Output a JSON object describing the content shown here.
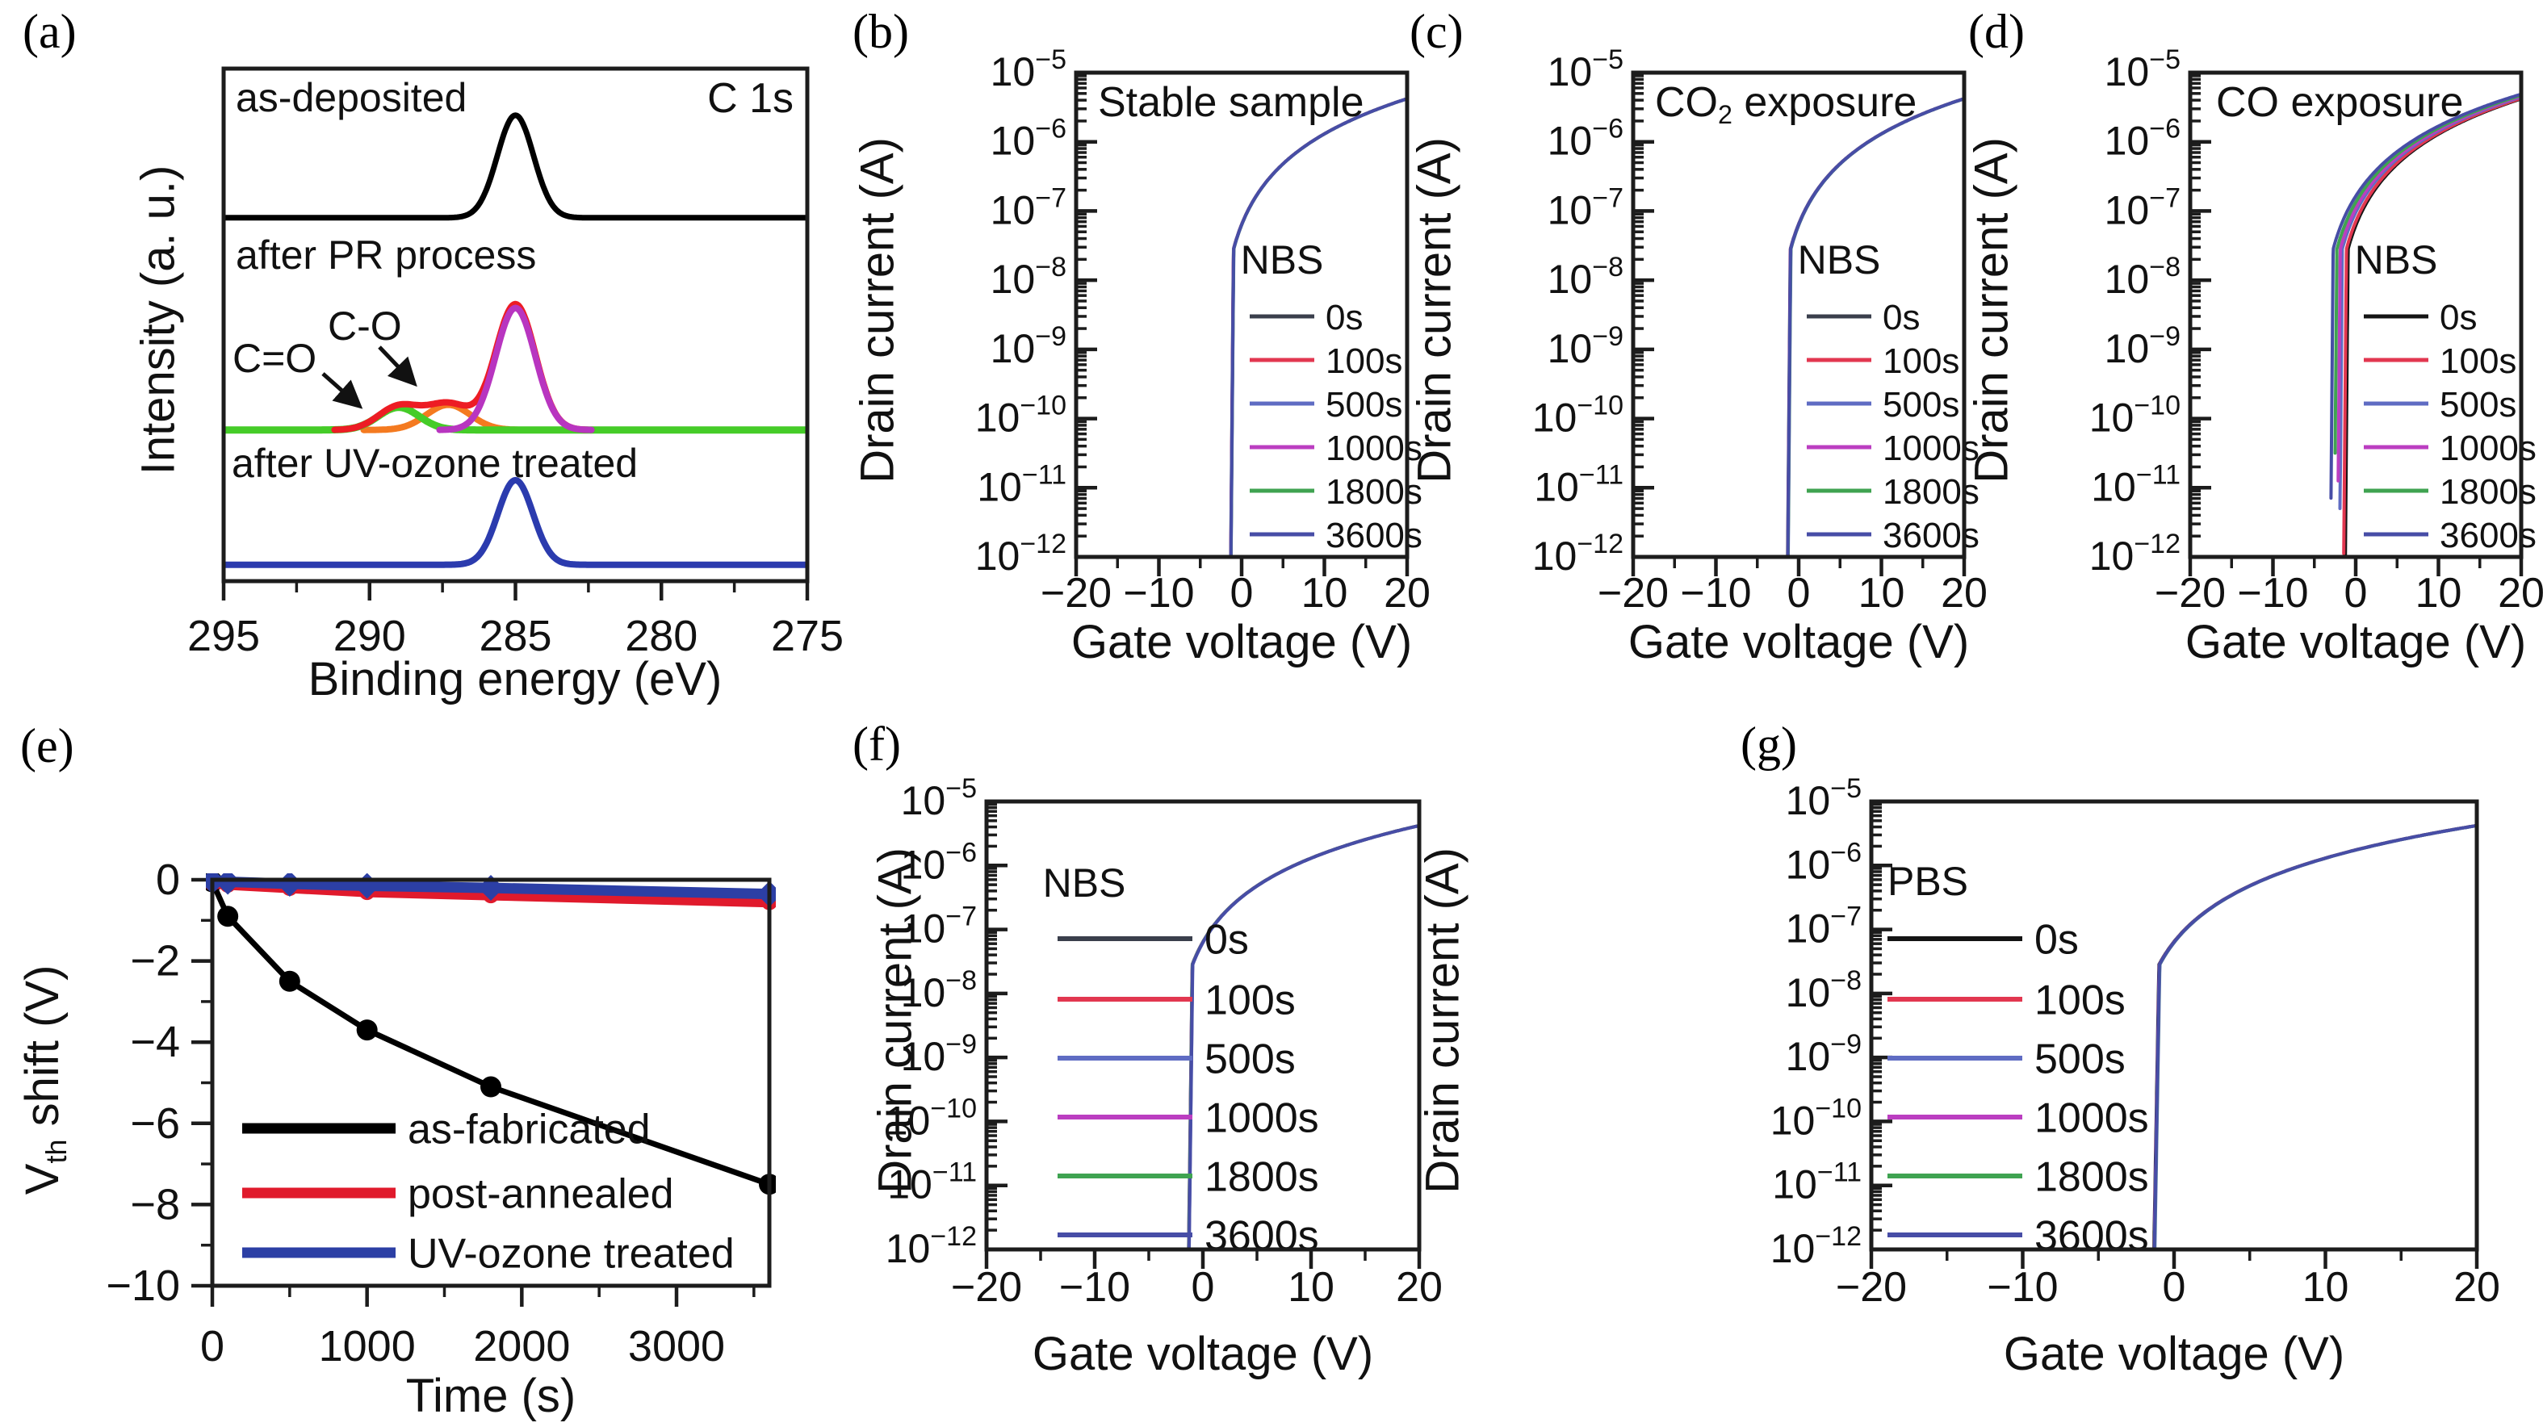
{
  "canvas": {
    "background": "#ffffff",
    "frame_color": "#1c1c1c"
  },
  "chart_data": [
    {
      "id": "a",
      "panel_label": "(a)",
      "type": "line",
      "corner_label": "C 1s",
      "xlabel": "Binding energy (eV)",
      "ylabel": "Intensity (a. u.)",
      "x_ticks": [
        295,
        290,
        285,
        280,
        275
      ],
      "x_minor_ticks": [
        292.5,
        287.5,
        282.5,
        277.5
      ],
      "x_range": [
        295,
        275
      ],
      "annotations": [
        {
          "id": "as-deposited",
          "text": "as-deposited"
        },
        {
          "id": "after-pr",
          "text": "after PR process"
        },
        {
          "id": "after-uv",
          "text": "after UV-ozone treated"
        },
        {
          "id": "c-double-bond-o",
          "text": "C=O"
        },
        {
          "id": "c-single-bond-o",
          "text": "C-O"
        }
      ],
      "spectra": [
        {
          "name": "as-deposited",
          "color": "#000000",
          "baseline": 0.291,
          "width": 7,
          "peaks": [
            {
              "center_eV": 285.0,
              "height": 0.2,
              "sigma_eV": 0.62
            }
          ]
        },
        {
          "name": "after-PR C-O component",
          "color": "#f47a20",
          "baseline": 0.705,
          "width": 8,
          "domain_eV": [
            290.2,
            284.2
          ],
          "peaks": [
            {
              "center_eV": 287.3,
              "height": 0.049,
              "sigma_eV": 0.75
            }
          ]
        },
        {
          "name": "after-PR C=O component",
          "color": "#45cc28",
          "baseline": 0.705,
          "width": 9,
          "peaks": [
            {
              "center_eV": 289.0,
              "height": 0.044,
              "sigma_eV": 0.7
            }
          ]
        },
        {
          "name": "after-PR envelope",
          "color": "#ed1c24",
          "baseline": 0.705,
          "width": 8,
          "domain_eV": [
            291.2,
            282.4
          ],
          "envelope_scale": 1.03,
          "peaks": [
            {
              "center_eV": 285.0,
              "height": 0.238,
              "sigma_eV": 0.68
            },
            {
              "center_eV": 287.3,
              "height": 0.049,
              "sigma_eV": 0.75
            },
            {
              "center_eV": 289.0,
              "height": 0.044,
              "sigma_eV": 0.7
            }
          ]
        },
        {
          "name": "after-PR main C-C",
          "color": "#b835c0",
          "baseline": 0.705,
          "width": 8,
          "domain_eV": [
            287.6,
            282.4
          ],
          "peaks": [
            {
              "center_eV": 285.0,
              "height": 0.238,
              "sigma_eV": 0.68
            }
          ]
        },
        {
          "name": "after UV-ozone treated",
          "color": "#2b3bae",
          "baseline": 0.968,
          "width": 8,
          "peaks": [
            {
              "center_eV": 285.0,
              "height": 0.165,
              "sigma_eV": 0.6
            }
          ]
        }
      ]
    },
    {
      "id": "b",
      "panel_label": "(b)",
      "type": "line",
      "title_tokens": [
        {
          "t": "Stable sample"
        }
      ],
      "xlabel": "Gate voltage (V)",
      "ylabel": "Drain current (A)",
      "x_ticks": [
        -20,
        -10,
        0,
        10,
        20
      ],
      "x_minor_ticks": [
        -15,
        -5,
        5,
        15
      ],
      "x_range": [
        -20,
        20
      ],
      "y_decades": [
        -5,
        -6,
        -7,
        -8,
        -9,
        -10,
        -11,
        -12
      ],
      "legend_title": "NBS",
      "curve_model": {
        "subthreshold_dec_per_V": 13.5,
        "knee_log": -7.55,
        "sat_slope": 2.05,
        "sat_scale_V": 2.0,
        "sat_offset_V": 0.33
      },
      "series": [
        {
          "label": "0s",
          "color": "#3a3f4c",
          "v_on": -1.32,
          "tail_log": -12
        },
        {
          "label": "100s",
          "color": "#e23750",
          "v_on": -1.3,
          "tail_log": -12
        },
        {
          "label": "500s",
          "color": "#5f6cc3",
          "v_on": -1.28,
          "tail_log": -12
        },
        {
          "label": "1000s",
          "color": "#bb3ec1",
          "v_on": -1.31,
          "tail_log": -12
        },
        {
          "label": "1800s",
          "color": "#3fa351",
          "v_on": -1.29,
          "tail_log": -12
        },
        {
          "label": "3600s",
          "color": "#474da6",
          "v_on": -1.3,
          "tail_log": -12
        }
      ]
    },
    {
      "id": "c",
      "panel_label": "(c)",
      "type": "line",
      "title_tokens": [
        {
          "t": "CO"
        },
        {
          "t": "2",
          "sub": true
        },
        {
          "t": " exposure"
        }
      ],
      "xlabel": "Gate voltage (V)",
      "ylabel": "Drain current (A)",
      "x_ticks": [
        -20,
        -10,
        0,
        10,
        20
      ],
      "x_minor_ticks": [
        -15,
        -5,
        5,
        15
      ],
      "x_range": [
        -20,
        20
      ],
      "y_decades": [
        -5,
        -6,
        -7,
        -8,
        -9,
        -10,
        -11,
        -12
      ],
      "legend_title": "NBS",
      "curve_model": {
        "subthreshold_dec_per_V": 13.5,
        "knee_log": -7.55,
        "sat_slope": 2.05,
        "sat_scale_V": 2.0,
        "sat_offset_V": 0.33
      },
      "series": [
        {
          "label": "0s",
          "color": "#3a3f4c",
          "v_on": -1.34,
          "tail_log": -12
        },
        {
          "label": "100s",
          "color": "#e23750",
          "v_on": -1.3,
          "tail_log": -12
        },
        {
          "label": "500s",
          "color": "#5f6cc3",
          "v_on": -1.27,
          "tail_log": -12
        },
        {
          "label": "1000s",
          "color": "#bb3ec1",
          "v_on": -1.32,
          "tail_log": -11.6
        },
        {
          "label": "1800s",
          "color": "#3fa351",
          "v_on": -1.29,
          "tail_log": -12
        },
        {
          "label": "3600s",
          "color": "#474da6",
          "v_on": -1.31,
          "tail_log": -12
        }
      ]
    },
    {
      "id": "d",
      "panel_label": "(d)",
      "type": "line",
      "title_tokens": [
        {
          "t": "CO exposure"
        }
      ],
      "xlabel": "Gate voltage (V)",
      "ylabel": "Drain current (A)",
      "x_ticks": [
        -20,
        -10,
        0,
        10,
        20
      ],
      "x_minor_ticks": [
        -15,
        -5,
        5,
        15
      ],
      "x_range": [
        -20,
        20
      ],
      "y_decades": [
        -5,
        -6,
        -7,
        -8,
        -9,
        -10,
        -11,
        -12
      ],
      "legend_title": "NBS",
      "curve_model": {
        "subthreshold_dec_per_V": 13.5,
        "knee_log": -7.55,
        "sat_slope": 2.05,
        "sat_scale_V": 2.0,
        "sat_offset_V": 0.33
      },
      "series": [
        {
          "label": "0s",
          "color": "#141414",
          "v_on": -1.25,
          "tail_log": -12
        },
        {
          "label": "100s",
          "color": "#e23750",
          "v_on": -1.45,
          "tail_log": -11.95
        },
        {
          "label": "500s",
          "color": "#5f6cc3",
          "v_on": -1.95,
          "tail_log": -11.3
        },
        {
          "label": "1000s",
          "color": "#bb3ec1",
          "v_on": -2.2,
          "tail_log": -10.9
        },
        {
          "label": "1800s",
          "color": "#3fa351",
          "v_on": -2.6,
          "tail_log": -10.5
        },
        {
          "label": "3600s",
          "color": "#474da6",
          "v_on": -3.05,
          "tail_log": -11.15
        }
      ]
    },
    {
      "id": "e",
      "panel_label": "(e)",
      "type": "line",
      "xlabel": "Time (s)",
      "ylabel_tokens": [
        {
          "t": "V"
        },
        {
          "t": "th",
          "sub": true
        },
        {
          "t": " shift (V)"
        }
      ],
      "x_ticks": [
        0,
        1000,
        2000,
        3000
      ],
      "x_minor_ticks": [
        500,
        1500,
        2500,
        3500
      ],
      "x_range": [
        0,
        3600
      ],
      "y_ticks": [
        0,
        -2,
        -4,
        -6,
        -8,
        -10
      ],
      "y_minor_ticks": [
        -1,
        -3,
        -5,
        -7,
        -9
      ],
      "y_range": [
        0,
        -10
      ],
      "series": [
        {
          "label": "as-fabricated",
          "color": "#000000",
          "marker": "circle",
          "line_width": 7,
          "marker_size": 13,
          "x": [
            0,
            100,
            500,
            1000,
            1800,
            3600
          ],
          "y": [
            -0.05,
            -0.9,
            -2.5,
            -3.7,
            -5.1,
            -7.5
          ]
        },
        {
          "label": "post-annealed",
          "color": "#e01a2c",
          "marker": "circle",
          "line_width": 13,
          "marker_size": 10,
          "x": [
            0,
            100,
            500,
            1000,
            1800,
            3600
          ],
          "y": [
            -0.08,
            -0.12,
            -0.2,
            -0.3,
            -0.38,
            -0.55
          ]
        },
        {
          "label": "UV-ozone treated",
          "color": "#2c3fa5",
          "marker": "diamond",
          "line_width": 13,
          "marker_size": 16,
          "x": [
            0,
            100,
            500,
            1000,
            1800,
            3600
          ],
          "y": [
            -0.03,
            -0.05,
            -0.1,
            -0.15,
            -0.2,
            -0.35
          ]
        }
      ]
    },
    {
      "id": "f",
      "panel_label": "(f)",
      "type": "line",
      "xlabel": "Gate voltage (V)",
      "ylabel": "Drain current (A)",
      "x_ticks": [
        -20,
        -10,
        0,
        10,
        20
      ],
      "x_minor_ticks": [
        -15,
        -5,
        5,
        15
      ],
      "x_range": [
        -20,
        20
      ],
      "y_decades": [
        -5,
        -6,
        -7,
        -8,
        -9,
        -10,
        -11,
        -12
      ],
      "legend_title": "NBS",
      "curve_model": {
        "subthreshold_dec_per_V": 13.5,
        "knee_log": -7.55,
        "sat_slope": 2.05,
        "sat_scale_V": 2.0,
        "sat_offset_V": 0.33
      },
      "series": [
        {
          "label": "0s",
          "color": "#3a3f4c",
          "v_on": -1.32,
          "tail_log": -12
        },
        {
          "label": "100s",
          "color": "#e23750",
          "v_on": -1.29,
          "tail_log": -12
        },
        {
          "label": "500s",
          "color": "#5f6cc3",
          "v_on": -1.27,
          "tail_log": -12
        },
        {
          "label": "1000s",
          "color": "#bb3ec1",
          "v_on": -1.31,
          "tail_log": -12
        },
        {
          "label": "1800s",
          "color": "#3fa351",
          "v_on": -1.3,
          "tail_log": -12
        },
        {
          "label": "3600s",
          "color": "#474da6",
          "v_on": -1.28,
          "tail_log": -12
        }
      ]
    },
    {
      "id": "g",
      "panel_label": "(g)",
      "type": "line",
      "xlabel": "Gate voltage (V)",
      "ylabel": "Drain current (A)",
      "x_ticks": [
        -20,
        -10,
        0,
        10,
        20
      ],
      "x_minor_ticks": [
        -15,
        -5,
        5,
        15
      ],
      "x_range": [
        -20,
        20
      ],
      "y_decades": [
        -5,
        -6,
        -7,
        -8,
        -9,
        -10,
        -11,
        -12
      ],
      "legend_title": "PBS",
      "curve_model": {
        "subthreshold_dec_per_V": 13.5,
        "knee_log": -7.55,
        "sat_slope": 2.05,
        "sat_scale_V": 2.0,
        "sat_offset_V": 0.33
      },
      "series": [
        {
          "label": "0s",
          "color": "#141414",
          "v_on": -1.33,
          "tail_log": -12
        },
        {
          "label": "100s",
          "color": "#e23750",
          "v_on": -1.3,
          "tail_log": -12
        },
        {
          "label": "500s",
          "color": "#5f6cc3",
          "v_on": -1.27,
          "tail_log": -12
        },
        {
          "label": "1000s",
          "color": "#bb3ec1",
          "v_on": -1.31,
          "tail_log": -11.7
        },
        {
          "label": "1800s",
          "color": "#3fa351",
          "v_on": -1.29,
          "tail_log": -12
        },
        {
          "label": "3600s",
          "color": "#474da6",
          "v_on": -1.3,
          "tail_log": -12
        }
      ]
    }
  ]
}
